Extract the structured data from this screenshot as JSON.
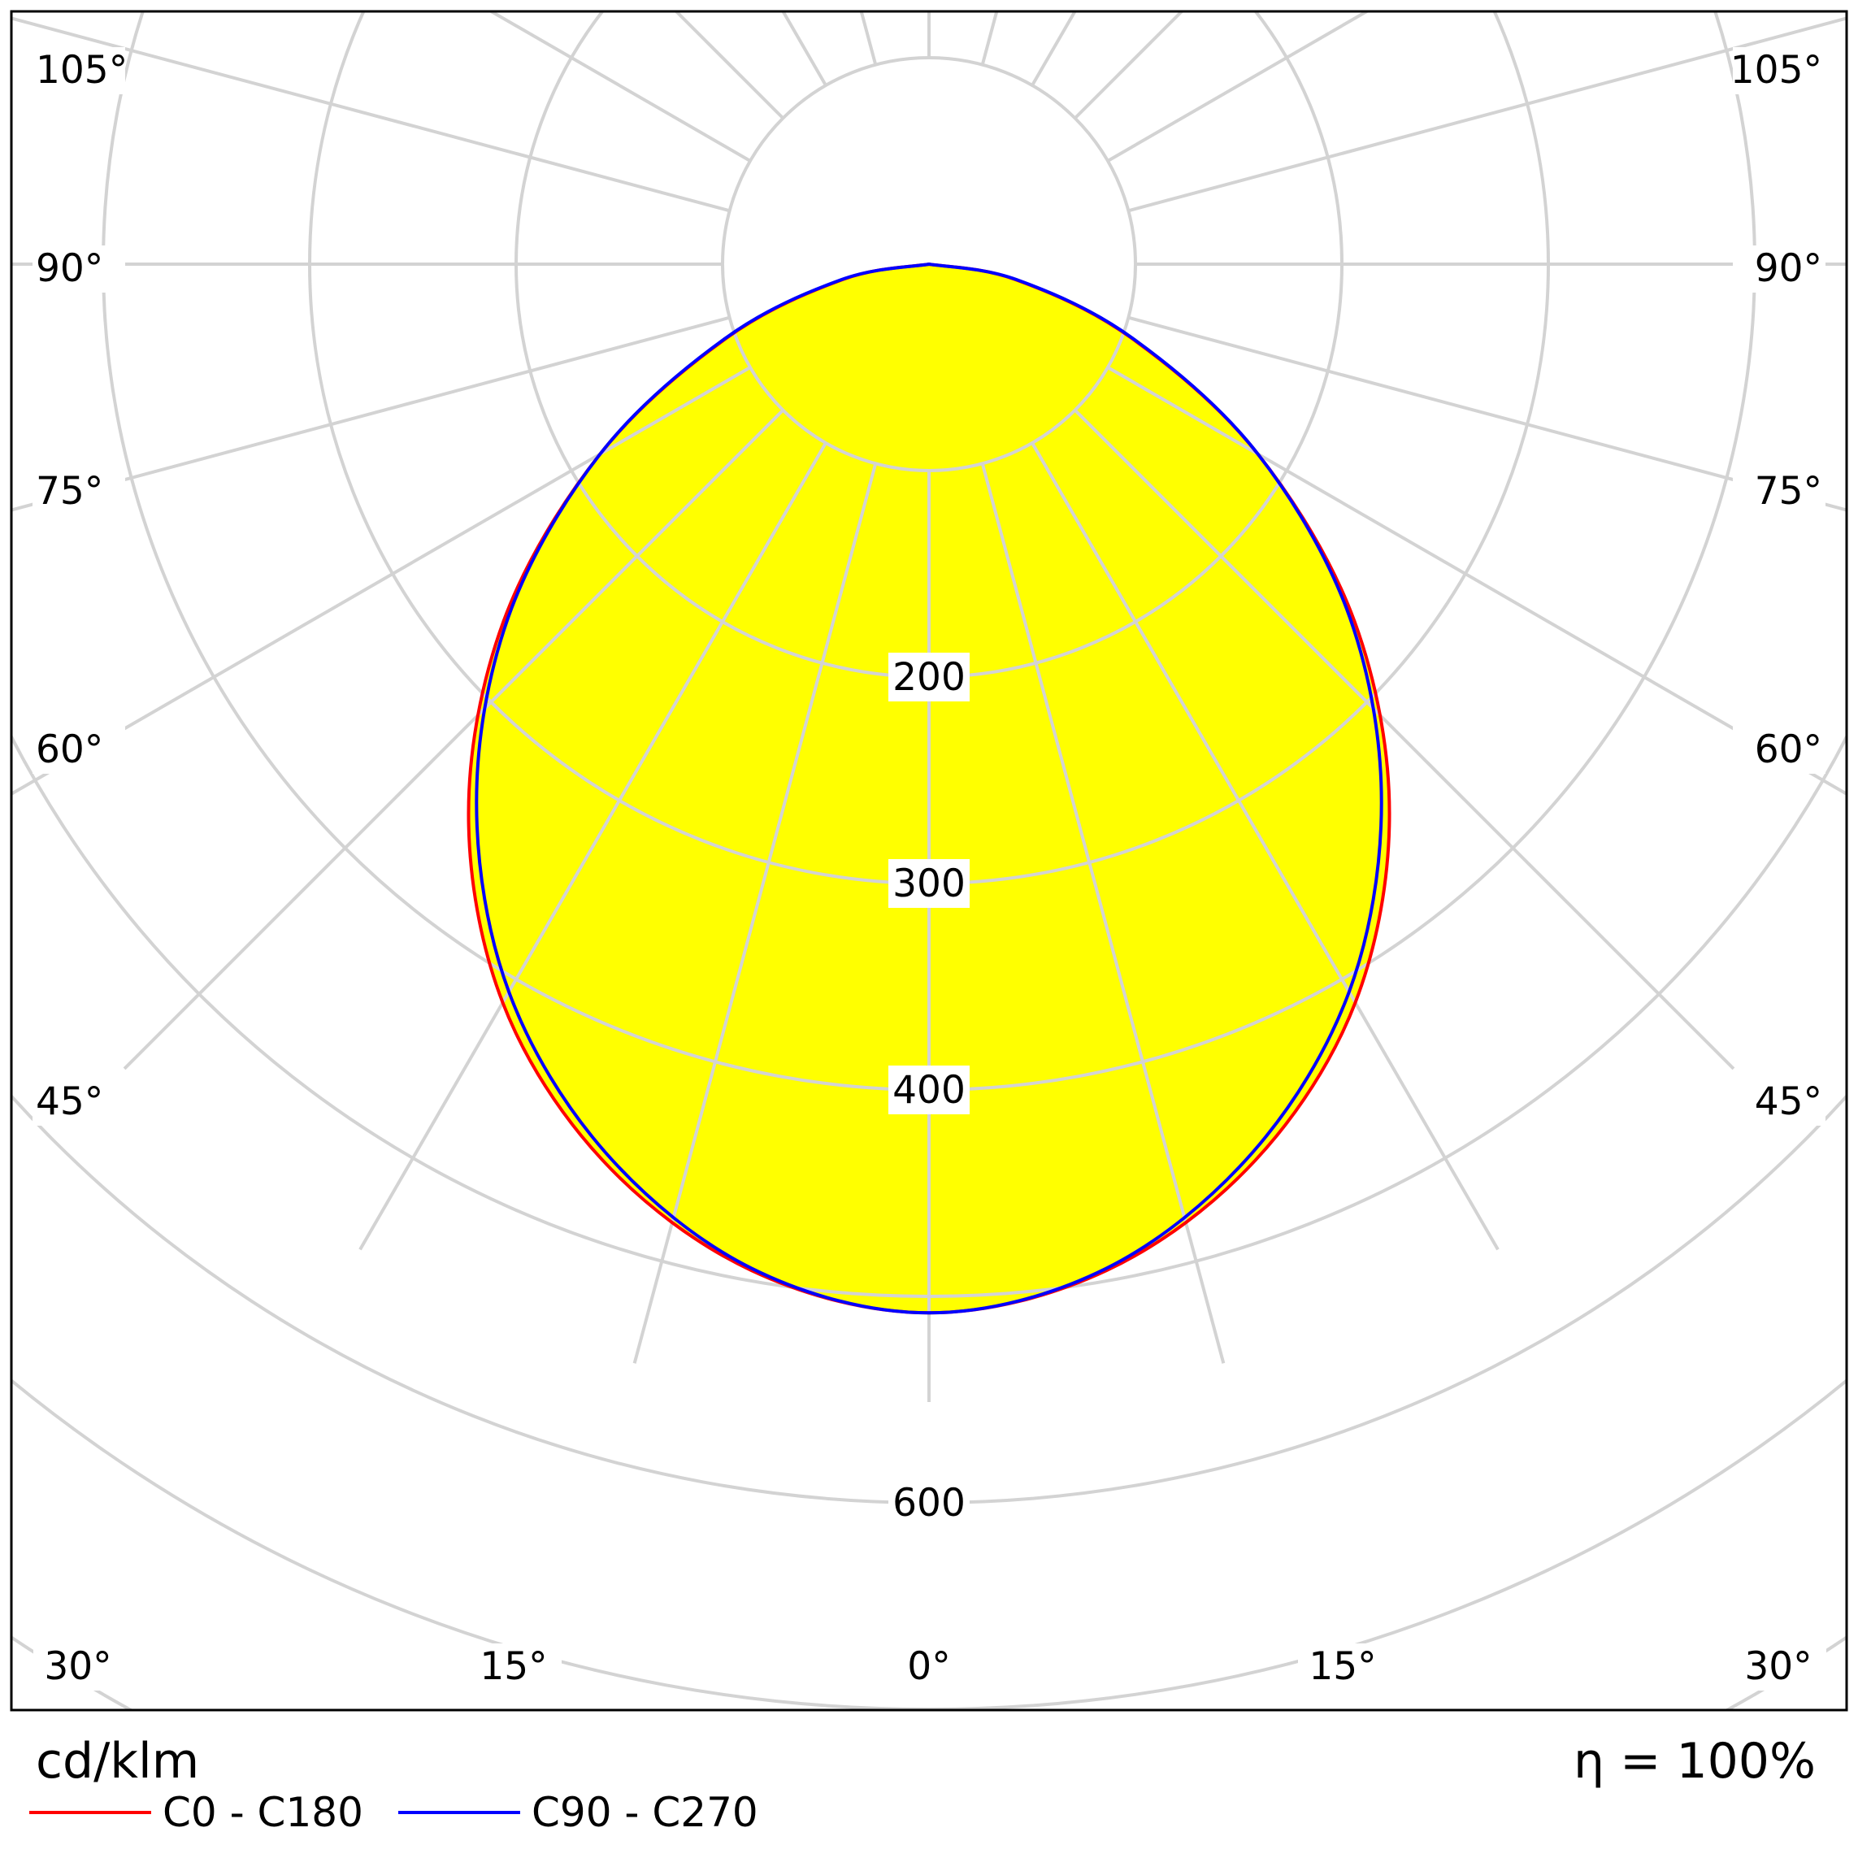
{
  "chart_data": {
    "type": "polar",
    "unit_label": "cd/klm",
    "efficiency_label": "η = 100%",
    "radial_ticks": [
      100,
      200,
      300,
      400,
      500,
      600,
      700,
      800
    ],
    "radial_labels": [
      "200",
      "300",
      "400",
      "600"
    ],
    "angle_labels": {
      "left": [
        "105°",
        "90°",
        "75°",
        "60°",
        "45°",
        "30°",
        "15°"
      ],
      "bottom": "0°",
      "right": [
        "15°",
        "30°",
        "45°",
        "60°",
        "75°",
        "90°",
        "105°"
      ]
    },
    "angles_deg": [
      0,
      10,
      20,
      30,
      40,
      50,
      60,
      70,
      80,
      90
    ],
    "series": [
      {
        "name": "C0 - C180",
        "color": "#ff0000",
        "values": [
          508,
          495,
          462,
          413,
          347,
          269,
          184,
          104,
          42,
          0
        ]
      },
      {
        "name": "C90 - C270",
        "color": "#0000ff",
        "values": [
          508,
          494,
          458,
          407,
          341,
          266,
          184,
          105,
          43,
          0
        ]
      }
    ],
    "fill_color": "#ffff00",
    "grid_color": "#d3d3d3"
  },
  "legend": [
    {
      "label": "C0 - C180",
      "color": "#ff0000"
    },
    {
      "label": "C90 - C270",
      "color": "#0000ff"
    }
  ]
}
